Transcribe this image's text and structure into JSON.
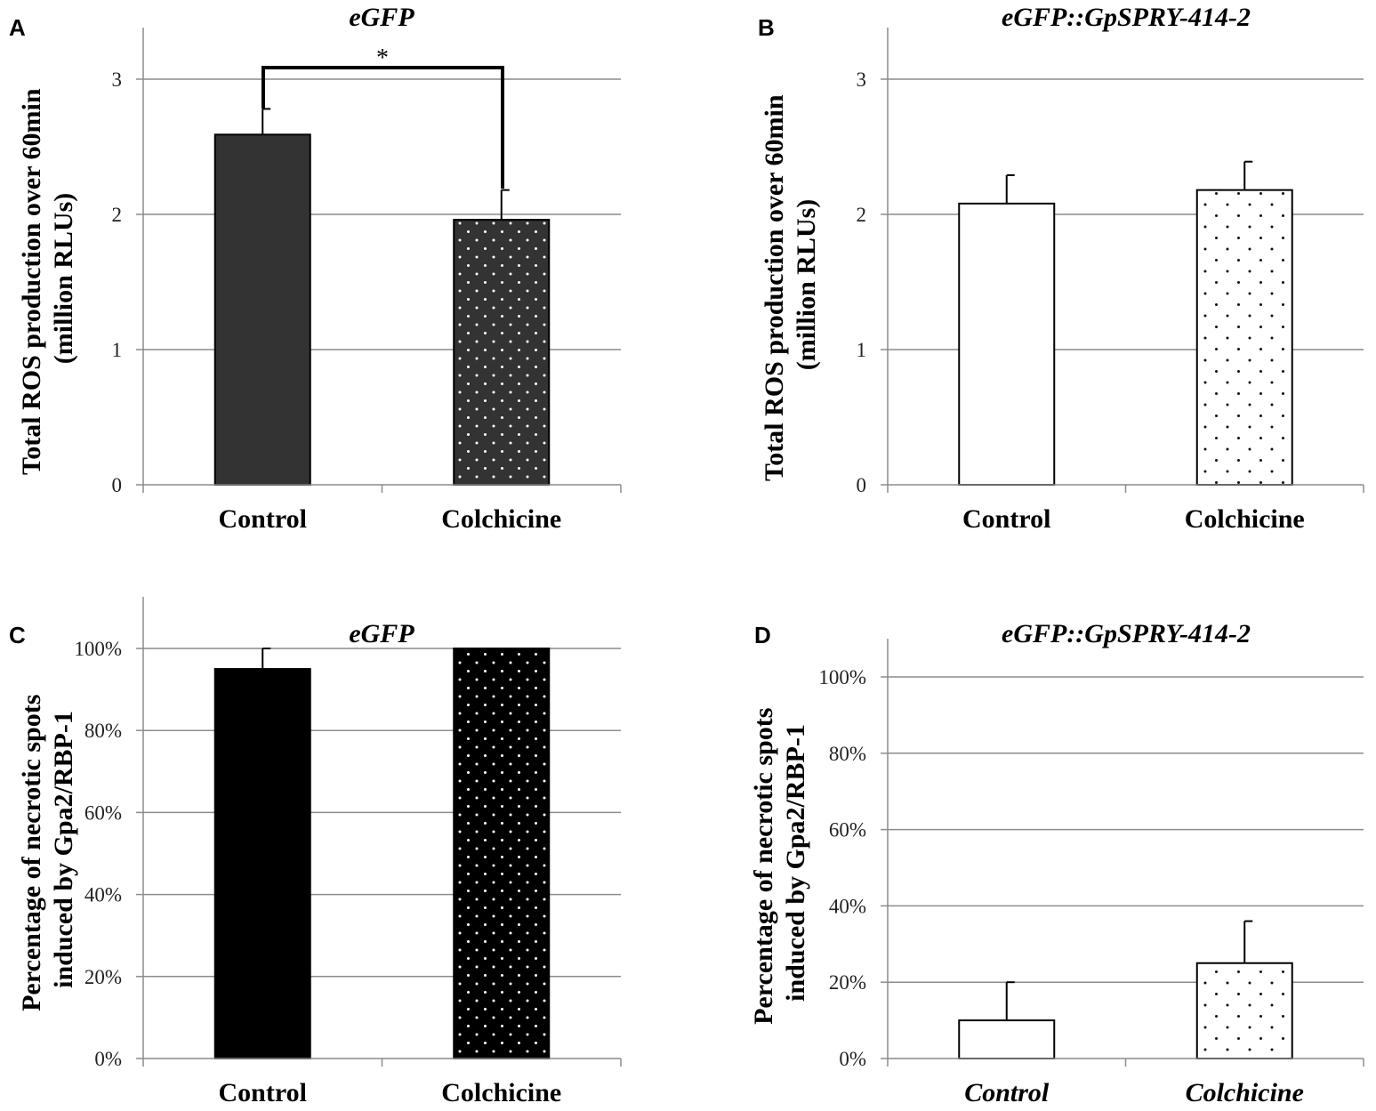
{
  "figure_labels": [
    "A",
    "B",
    "C",
    "D"
  ],
  "chart_data": [
    {
      "panel": "A",
      "type": "bar",
      "title": "eGFP",
      "ylabel": [
        "Total ROS production over 60min",
        "(million RLUs)"
      ],
      "categories": [
        "Control",
        "Colchicine"
      ],
      "values": [
        2.59,
        1.96
      ],
      "errors": [
        0.19,
        0.22
      ],
      "fills": [
        "solid-dark",
        "dotted-dark"
      ],
      "ylim": [
        0,
        3
      ],
      "ytick_labels": [
        "0",
        "1",
        "2",
        "3"
      ],
      "significance": "*",
      "grid": true
    },
    {
      "panel": "B",
      "type": "bar",
      "title": "eGFP::GpSPRY-414-2",
      "ylabel": [
        "Total ROS production over 60min",
        "(million RLUs)"
      ],
      "categories": [
        "Control",
        "Colchicine"
      ],
      "values": [
        2.08,
        2.18
      ],
      "errors": [
        0.21,
        0.21
      ],
      "fills": [
        "white",
        "dotted-white"
      ],
      "ylim": [
        0,
        3
      ],
      "ytick_labels": [
        "0",
        "1",
        "2",
        "3"
      ],
      "grid": true
    },
    {
      "panel": "C",
      "type": "bar",
      "title": "eGFP",
      "ylabel": [
        "Percentage of necrotic spots",
        "induced by Gpa2/RBP-1"
      ],
      "categories": [
        "Control",
        "Colchicine"
      ],
      "values": [
        0.95,
        1.0
      ],
      "errors": [
        0.05,
        0
      ],
      "fills": [
        "solid-black",
        "dotted-black"
      ],
      "ylim": [
        0,
        1.1
      ],
      "ytick_labels": [
        "0%",
        "20%",
        "40%",
        "60%",
        "80%",
        "100%"
      ],
      "grid": true
    },
    {
      "panel": "D",
      "type": "bar",
      "title": "eGFP::GpSPRY-414-2",
      "ylabel": [
        "Percentage of necrotic spots",
        "induced by Gpa2/RBP-1"
      ],
      "categories": [
        "Control",
        "Colchicine"
      ],
      "categories_italic": true,
      "values": [
        0.1,
        0.25
      ],
      "errors": [
        0.1,
        0.11
      ],
      "fills": [
        "white",
        "dotted-white"
      ],
      "ylim": [
        0,
        1.0
      ],
      "ytick_labels": [
        "0%",
        "20%",
        "40%",
        "60%",
        "80%",
        "100%"
      ],
      "grid": true
    }
  ]
}
